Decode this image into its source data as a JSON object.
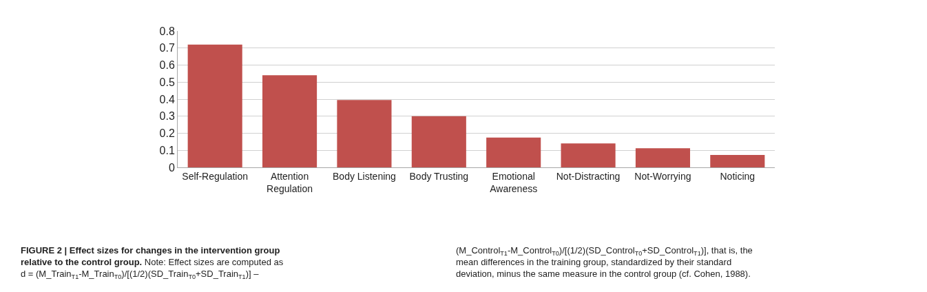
{
  "chart_data": {
    "type": "bar",
    "title": "FIGURE 2 | Effect sizes for changes in the intervention group\nrelative to the control group.",
    "annotations": [
      "Note: Effect sizes are computed as\nd = (M_Train$_{T1}$-M_Train$_{T0}$)/[(1/2)(SD_Train$_{T0}$+SD_Train$_{T1}$)] –",
      "(M_Control$_{T1}$-M_Control$_{T0}$)/[(1/2)(SD_Control$_{T0}$+SD_Control$_{T1}$)], that is, the\nmean differences in the training group, standardized by their standard\ndeviation, minus the same measure in the control group (cf. Cohen, 1988)."
    ],
    "categories": [
      "Self-Regulation",
      "Attention Regulation",
      "Body Listening",
      "Body Trusting",
      "Emotional Awareness",
      "Not-Distracting",
      "Not-Worrying",
      "Noticing"
    ],
    "values": [
      0.72,
      0.54,
      0.395,
      0.3,
      0.175,
      0.14,
      0.112,
      0.073
    ],
    "color": "#c0504d",
    "ylim": [
      0,
      0.8
    ],
    "yticks": [
      0,
      0.1,
      0.2,
      0.3,
      0.4,
      0.5,
      0.6,
      0.7,
      0.8
    ],
    "grid": "y",
    "legend": false
  }
}
